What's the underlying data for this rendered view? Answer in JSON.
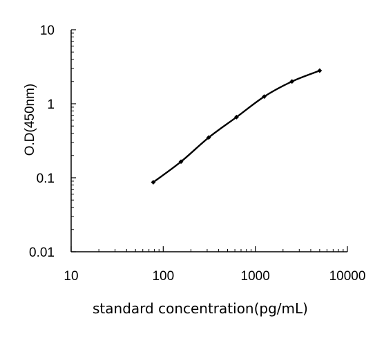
{
  "chart_data": {
    "type": "line",
    "xlabel": "standard concentration(pg/mL)",
    "ylabel": "O.D(450nm)",
    "x_scale": "log",
    "y_scale": "log",
    "xlim": [
      10,
      10000
    ],
    "ylim": [
      0.01,
      10
    ],
    "x_ticks": [
      "10",
      "100",
      "1000",
      "10000"
    ],
    "y_ticks": [
      "0.01",
      "0.1",
      "1",
      "10"
    ],
    "grid": false,
    "series": [
      {
        "x": [
          78,
          156,
          312,
          625,
          1250,
          2500,
          5000
        ],
        "y": [
          0.087,
          0.165,
          0.35,
          0.66,
          1.25,
          2.0,
          2.8
        ],
        "color": "#000000",
        "marker": "diamond"
      }
    ]
  }
}
